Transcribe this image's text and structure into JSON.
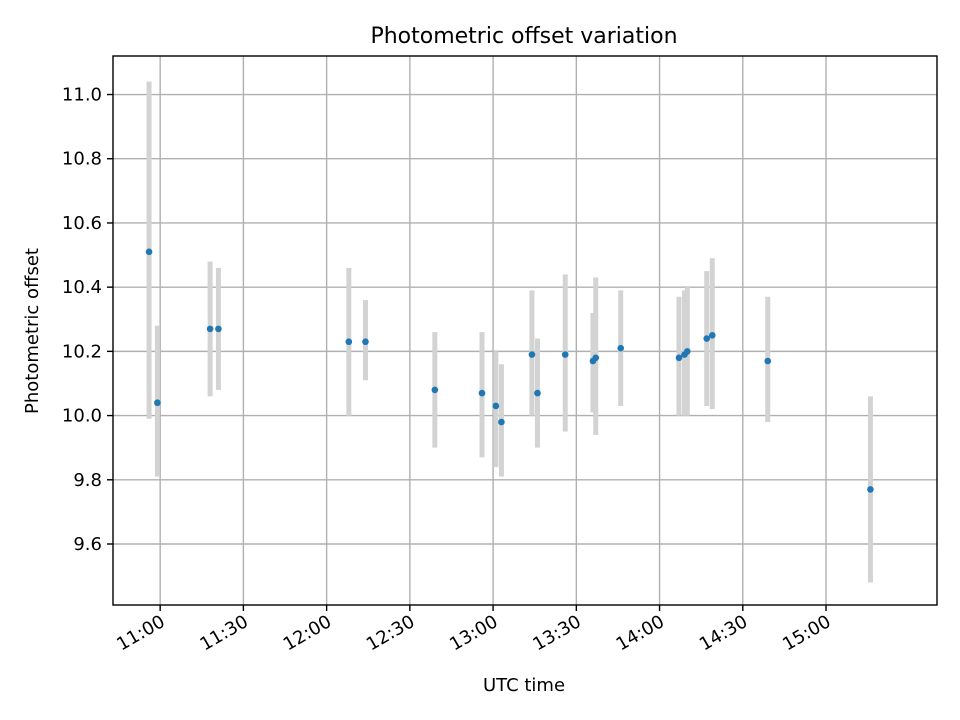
{
  "chart_data": {
    "type": "scatter",
    "title": "Photometric offset variation",
    "xlabel": "UTC time",
    "ylabel": "Photometric offset",
    "x_axis": {
      "kind": "time",
      "range": [
        "10:43",
        "15:40"
      ],
      "ticks": [
        {
          "value": "11:00",
          "label": "11:00"
        },
        {
          "value": "11:30",
          "label": "11:30"
        },
        {
          "value": "12:00",
          "label": "12:00"
        },
        {
          "value": "12:30",
          "label": "12:30"
        },
        {
          "value": "13:00",
          "label": "13:00"
        },
        {
          "value": "13:30",
          "label": "13:30"
        },
        {
          "value": "14:00",
          "label": "14:00"
        },
        {
          "value": "14:30",
          "label": "14:30"
        },
        {
          "value": "15:00",
          "label": "15:00"
        }
      ]
    },
    "y_axis": {
      "range": [
        9.41,
        11.12
      ],
      "ticks": [
        {
          "value": 9.6,
          "label": "9.6"
        },
        {
          "value": 9.8,
          "label": "9.8"
        },
        {
          "value": 10.0,
          "label": "10.0"
        },
        {
          "value": 10.2,
          "label": "10.2"
        },
        {
          "value": 10.4,
          "label": "10.4"
        },
        {
          "value": 10.6,
          "label": "10.6"
        },
        {
          "value": 10.8,
          "label": "10.8"
        },
        {
          "value": 11.0,
          "label": "11.0"
        }
      ]
    },
    "grid": true,
    "colors": {
      "point": "#1f77b4",
      "errorbar": "#d3d3d3",
      "grid": "#b0b0b0"
    },
    "points": [
      {
        "x": "10:56",
        "y": 10.51,
        "lo": 9.99,
        "hi": 11.04
      },
      {
        "x": "10:59",
        "y": 10.04,
        "lo": 9.81,
        "hi": 10.28
      },
      {
        "x": "11:18",
        "y": 10.27,
        "lo": 10.06,
        "hi": 10.48
      },
      {
        "x": "11:21",
        "y": 10.27,
        "lo": 10.08,
        "hi": 10.46
      },
      {
        "x": "12:08",
        "y": 10.23,
        "lo": 10.0,
        "hi": 10.46
      },
      {
        "x": "12:14",
        "y": 10.23,
        "lo": 10.11,
        "hi": 10.36
      },
      {
        "x": "12:39",
        "y": 10.08,
        "lo": 9.9,
        "hi": 10.26
      },
      {
        "x": "12:56",
        "y": 10.07,
        "lo": 9.87,
        "hi": 10.26
      },
      {
        "x": "13:01",
        "y": 10.03,
        "lo": 9.84,
        "hi": 10.2
      },
      {
        "x": "13:03",
        "y": 9.98,
        "lo": 9.81,
        "hi": 10.16
      },
      {
        "x": "13:14",
        "y": 10.19,
        "lo": 10.0,
        "hi": 10.39
      },
      {
        "x": "13:16",
        "y": 10.07,
        "lo": 9.9,
        "hi": 10.24
      },
      {
        "x": "13:26",
        "y": 10.19,
        "lo": 9.95,
        "hi": 10.44
      },
      {
        "x": "13:36",
        "y": 10.17,
        "lo": 10.01,
        "hi": 10.32
      },
      {
        "x": "13:37",
        "y": 10.18,
        "lo": 9.94,
        "hi": 10.43
      },
      {
        "x": "13:46",
        "y": 10.21,
        "lo": 10.03,
        "hi": 10.39
      },
      {
        "x": "14:07",
        "y": 10.18,
        "lo": 10.0,
        "hi": 10.37
      },
      {
        "x": "14:09",
        "y": 10.19,
        "lo": 10.0,
        "hi": 10.39
      },
      {
        "x": "14:10",
        "y": 10.2,
        "lo": 10.0,
        "hi": 10.4
      },
      {
        "x": "14:17",
        "y": 10.24,
        "lo": 10.03,
        "hi": 10.45
      },
      {
        "x": "14:19",
        "y": 10.25,
        "lo": 10.02,
        "hi": 10.49
      },
      {
        "x": "14:39",
        "y": 10.17,
        "lo": 9.98,
        "hi": 10.37
      },
      {
        "x": "15:16",
        "y": 9.77,
        "lo": 9.48,
        "hi": 10.06
      }
    ]
  }
}
